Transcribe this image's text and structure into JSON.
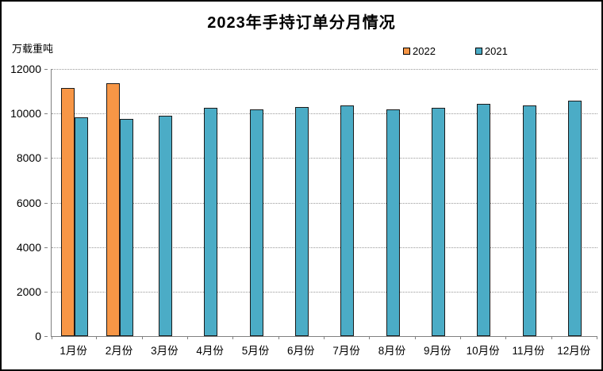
{
  "window": {
    "background": "#ffffff",
    "frame_border_color": "#000000"
  },
  "chart_data": {
    "type": "bar",
    "title": "2023年手持订单分月情况",
    "unit_label": "万载重吨",
    "xlabel": "",
    "ylabel": "万载重吨",
    "categories": [
      "1月份",
      "2月份",
      "3月份",
      "4月份",
      "5月份",
      "6月份",
      "7月份",
      "8月份",
      "9月份",
      "10月份",
      "11月份",
      "12月份"
    ],
    "series": [
      {
        "name": "2022",
        "color": "#F79646",
        "values": [
          11150,
          11360,
          null,
          null,
          null,
          null,
          null,
          null,
          null,
          null,
          null,
          null
        ]
      },
      {
        "name": "2021",
        "color": "#4BACC6",
        "values": [
          9830,
          9760,
          9890,
          10240,
          10180,
          10300,
          10370,
          10190,
          10270,
          10440,
          10360,
          10560
        ]
      }
    ],
    "ylim": [
      0,
      12000
    ],
    "yticks": [
      0,
      2000,
      4000,
      6000,
      8000,
      10000,
      12000
    ],
    "grid": true,
    "gridline_style": "dotted",
    "legend_position": "top-right",
    "bar_border_color": "#1a1a1a",
    "axis_color": "#808080"
  }
}
